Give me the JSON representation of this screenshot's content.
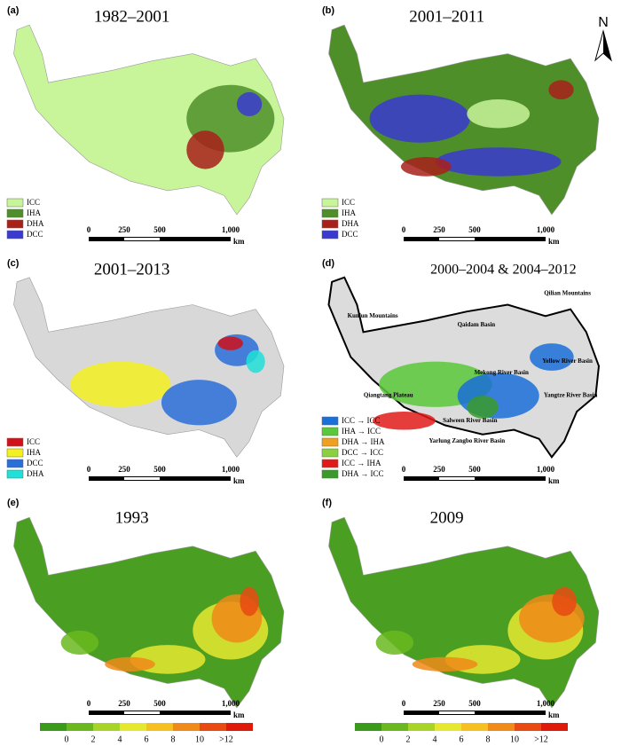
{
  "north": "N",
  "panels": [
    {
      "label": "(a)",
      "title": "1982–2001",
      "legend": [
        {
          "text": "ICC",
          "color": "#c8f59a"
        },
        {
          "text": "IHA",
          "color": "#4f8f2a"
        },
        {
          "text": "DHA",
          "color": "#a8201a"
        },
        {
          "text": "DCC",
          "color": "#3a3ad0"
        }
      ],
      "scale": [
        "0",
        "250",
        "500",
        "1,000",
        "km"
      ]
    },
    {
      "label": "(b)",
      "title": "2001–2011",
      "legend": [
        {
          "text": "ICC",
          "color": "#c8f59a"
        },
        {
          "text": "IHA",
          "color": "#4f8f2a"
        },
        {
          "text": "DHA",
          "color": "#a8201a"
        },
        {
          "text": "DCC",
          "color": "#3a3ad0"
        }
      ],
      "scale": [
        "0",
        "250",
        "500",
        "1,000",
        "km"
      ]
    },
    {
      "label": "(c)",
      "title": "2001–2013",
      "legend": [
        {
          "text": "ICC",
          "color": "#d0101a"
        },
        {
          "text": "IHA",
          "color": "#f5f020"
        },
        {
          "text": "DCC",
          "color": "#2a6fd8"
        },
        {
          "text": "DHA",
          "color": "#20e0d8"
        }
      ],
      "scale": [
        "0",
        "250",
        "500",
        "1,000",
        "km"
      ]
    },
    {
      "label": "(d)",
      "title": "2000–2004 & 2004–2012",
      "legend": [
        {
          "text": "ICC → ICC",
          "color": "#1a6fd8"
        },
        {
          "text": "IHA → ICC",
          "color": "#5ac83a"
        },
        {
          "text": "DHA → IHA",
          "color": "#f0a020"
        },
        {
          "text": "DCC → ICC",
          "color": "#8ad040"
        },
        {
          "text": "ICC → IHA",
          "color": "#e01a1a"
        },
        {
          "text": "DHA → ICC",
          "color": "#3a9a2a"
        }
      ],
      "scale": [
        "0",
        "250",
        "500",
        "1,000",
        "km"
      ],
      "map_labels": [
        "Kunlun Mountains",
        "Qilian Mountains",
        "Qaidam Basin",
        "Yellow River Basin",
        "Qiangtang Plateau",
        "Mekong River Basin",
        "Yangtze River Basin",
        "Salween River Basin",
        "Yarlung Zangbo River Basin"
      ]
    },
    {
      "label": "(e)",
      "title": "1993",
      "scale": [
        "0",
        "250",
        "500",
        "1,000",
        "km"
      ],
      "colorbar": {
        "colors": [
          "#3a9a1a",
          "#6ab81e",
          "#a8d428",
          "#e6e830",
          "#f5c020",
          "#f08a18",
          "#e84a12",
          "#e01a0a"
        ],
        "labels": [
          "0",
          "2",
          "4",
          "6",
          "8",
          "10",
          ">12"
        ]
      }
    },
    {
      "label": "(f)",
      "title": "2009",
      "scale": [
        "0",
        "250",
        "500",
        "1,000",
        "km"
      ],
      "colorbar": {
        "colors": [
          "#3a9a1a",
          "#6ab81e",
          "#a8d428",
          "#e6e830",
          "#f5c020",
          "#f08a18",
          "#e84a12",
          "#e01a0a"
        ],
        "labels": [
          "0",
          "2",
          "4",
          "6",
          "8",
          "10",
          ">12"
        ]
      }
    }
  ]
}
